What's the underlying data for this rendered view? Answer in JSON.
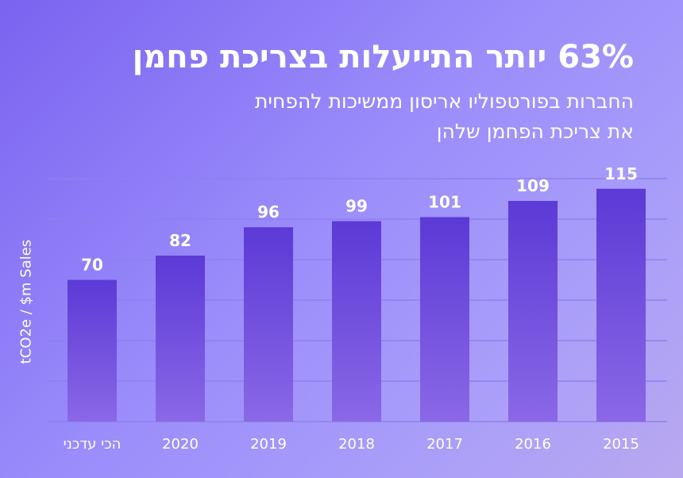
{
  "colors": {
    "bar_top": "#5b3ad6",
    "bar_bottom": "#8a68e6"
  },
  "chart_data": {
    "type": "bar",
    "title": "63% יותר התייעלות בצריכת פחמן",
    "subtitle_lines": [
      "החברות בפורטפוליו אריסון ממשיכות להפחית",
      "את צריכת הפחמן שלהן"
    ],
    "xlabel": "",
    "ylabel": "tCO2e / $m Sales",
    "categories": [
      "הכי עדכני",
      "2020",
      "2019",
      "2018",
      "2017",
      "2016",
      "2015"
    ],
    "values": [
      70,
      82,
      96,
      99,
      101,
      109,
      115
    ],
    "ylim": [
      0,
      120
    ],
    "grid": true
  }
}
